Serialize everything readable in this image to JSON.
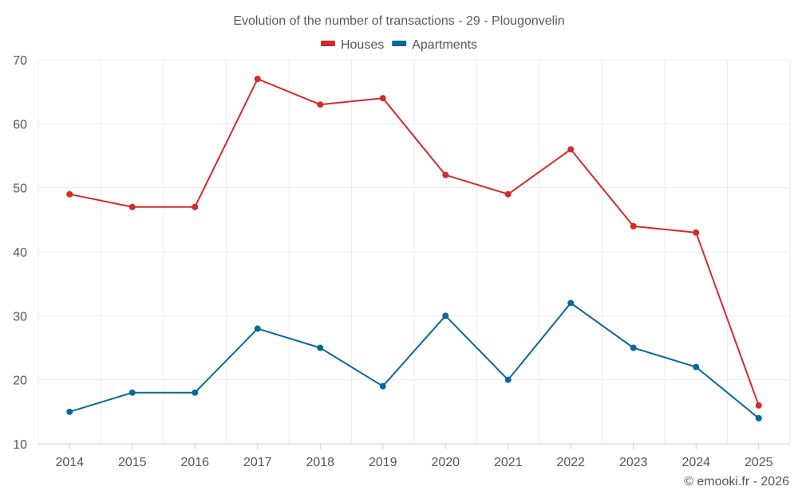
{
  "chart_data": {
    "type": "line",
    "title": "Evolution of the number of transactions - 29 - Plougonvelin",
    "xlabel": "",
    "ylabel": "",
    "categories": [
      "2014",
      "2015",
      "2016",
      "2017",
      "2018",
      "2019",
      "2020",
      "2021",
      "2022",
      "2023",
      "2024",
      "2025"
    ],
    "ylim": [
      10,
      70
    ],
    "yticks": [
      10,
      20,
      30,
      40,
      50,
      60,
      70
    ],
    "grid": true,
    "legend_position": "top-center",
    "series": [
      {
        "name": "Houses",
        "color": "#d42a2a",
        "values": [
          49,
          47,
          47,
          67,
          63,
          64,
          52,
          49,
          56,
          44,
          43,
          16
        ]
      },
      {
        "name": "Apartments",
        "color": "#08689c",
        "values": [
          15,
          18,
          18,
          28,
          25,
          19,
          30,
          20,
          32,
          25,
          22,
          14
        ]
      }
    ]
  },
  "credit": "© emooki.fr - 2026"
}
